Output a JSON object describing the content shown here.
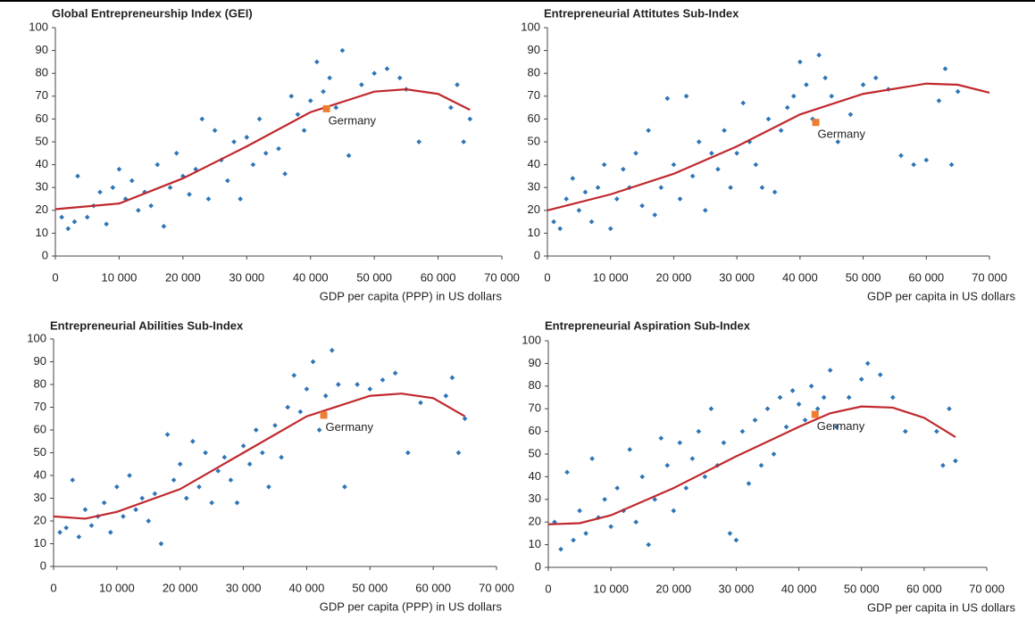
{
  "chart_data": [
    {
      "type": "scatter",
      "title": "Global Entrepreneurship Index (GEI)",
      "xlabel": "GDP per capita (PPP) in US dollars",
      "xlim": [
        0,
        70000
      ],
      "ylim": [
        0,
        100
      ],
      "xticks": [
        0,
        {
          "value": 10000,
          "label": "10 000"
        },
        {
          "value": 20000,
          "label": "20 000"
        },
        {
          "value": 30000,
          "label": "30 000"
        },
        {
          "value": 40000,
          "label": "40 000"
        },
        {
          "value": 50000,
          "label": "50 000"
        },
        {
          "value": 60000,
          "label": "60 000"
        },
        {
          "value": 70000,
          "label": "70 000"
        }
      ],
      "yticks": [
        0,
        10,
        20,
        30,
        40,
        50,
        60,
        70,
        80,
        90,
        100
      ],
      "series": [
        {
          "type": "scatter",
          "color": "#2e75b6",
          "x": [
            1000,
            2000,
            3000,
            3500,
            5000,
            6000,
            7000,
            8000,
            9000,
            10000,
            11000,
            12000,
            13000,
            14000,
            15000,
            16000,
            17000,
            18000,
            19000,
            20000,
            21000,
            22000,
            23000,
            24000,
            25000,
            26000,
            27000,
            28000,
            29000,
            30000,
            31000,
            32000,
            33000,
            35000,
            36000,
            37000,
            38000,
            39000,
            40000,
            41000,
            42000,
            43000,
            44000,
            45000,
            46000,
            48000,
            50000,
            52000,
            54000,
            55000,
            57000,
            62000,
            63000,
            64000,
            65000
          ],
          "values": [
            17,
            12,
            15,
            35,
            17,
            22,
            28,
            14,
            30,
            38,
            25,
            33,
            20,
            28,
            22,
            40,
            13,
            30,
            45,
            35,
            27,
            38,
            60,
            25,
            55,
            42,
            33,
            50,
            25,
            52,
            40,
            60,
            45,
            47,
            36,
            70,
            62,
            55,
            68,
            85,
            72,
            78,
            65,
            90,
            44,
            75,
            80,
            82,
            78,
            73,
            50,
            65,
            75,
            50,
            60
          ]
        },
        {
          "type": "line",
          "color": "#c0282d",
          "x": [
            0,
            10000,
            20000,
            30000,
            40000,
            50000,
            55000,
            60000,
            65000
          ],
          "values": [
            20.5,
            23,
            34,
            48,
            63,
            72,
            73,
            71,
            64
          ]
        },
        {
          "type": "scatter",
          "name": "Germany",
          "color": "#ed7d31",
          "x": [
            42500
          ],
          "values": [
            64.5
          ]
        }
      ]
    },
    {
      "type": "scatter",
      "title": "Entrepreneurial Attitutes Sub-Index",
      "xlabel": "GDP per capita in US dollars",
      "xlim": [
        0,
        70000
      ],
      "ylim": [
        0,
        100
      ],
      "xticks": [
        0,
        {
          "value": 10000,
          "label": "10 000"
        },
        {
          "value": 20000,
          "label": "20 000"
        },
        {
          "value": 30000,
          "label": "30 000"
        },
        {
          "value": 40000,
          "label": "40 000"
        },
        {
          "value": 50000,
          "label": "50 000"
        },
        {
          "value": 60000,
          "label": "60 000"
        },
        {
          "value": 70000,
          "label": "70 000"
        }
      ],
      "yticks": [
        0,
        10,
        20,
        30,
        40,
        50,
        60,
        70,
        80,
        90,
        100
      ],
      "series": [
        {
          "type": "scatter",
          "color": "#2e75b6",
          "x": [
            1000,
            2000,
            3000,
            4000,
            5000,
            6000,
            7000,
            8000,
            9000,
            10000,
            11000,
            12000,
            13000,
            14000,
            15000,
            16000,
            17000,
            18000,
            19000,
            20000,
            21000,
            22000,
            23000,
            24000,
            25000,
            26000,
            27000,
            28000,
            29000,
            30000,
            31000,
            32000,
            33000,
            34000,
            35000,
            36000,
            37000,
            38000,
            39000,
            40000,
            41000,
            42000,
            43000,
            44000,
            45000,
            46000,
            48000,
            50000,
            52000,
            54000,
            56000,
            58000,
            60000,
            62000,
            63000,
            64000,
            65000
          ],
          "values": [
            15,
            12,
            25,
            34,
            20,
            28,
            15,
            30,
            40,
            12,
            25,
            38,
            30,
            45,
            22,
            55,
            18,
            30,
            69,
            40,
            25,
            70,
            35,
            50,
            20,
            45,
            38,
            55,
            30,
            45,
            67,
            50,
            40,
            30,
            60,
            28,
            55,
            65,
            70,
            85,
            75,
            60,
            88,
            78,
            70,
            50,
            62,
            75,
            78,
            73,
            44,
            40,
            42,
            68,
            82,
            40,
            72
          ]
        },
        {
          "type": "line",
          "color": "#c0282d",
          "x": [
            0,
            10000,
            20000,
            30000,
            40000,
            50000,
            60000,
            65000,
            70000
          ],
          "values": [
            20,
            27,
            36,
            48,
            62,
            71,
            75.5,
            75,
            71.5
          ]
        },
        {
          "type": "scatter",
          "name": "Germany",
          "color": "#ed7d31",
          "x": [
            42500
          ],
          "values": [
            58.5
          ]
        }
      ]
    },
    {
      "type": "scatter",
      "title": "Entrepreneurial Abilities Sub-Index",
      "xlabel": "GDP per capita (PPP) in US dollars",
      "xlim": [
        0,
        70000
      ],
      "ylim": [
        0,
        100
      ],
      "xticks": [
        0,
        {
          "value": 10000,
          "label": "10 000"
        },
        {
          "value": 20000,
          "label": "20 000"
        },
        {
          "value": 30000,
          "label": "30 000"
        },
        {
          "value": 40000,
          "label": "40 000"
        },
        {
          "value": 50000,
          "label": "50 000"
        },
        {
          "value": 60000,
          "label": "60 000"
        },
        {
          "value": 70000,
          "label": "70 000"
        }
      ],
      "yticks": [
        0,
        10,
        20,
        30,
        40,
        50,
        60,
        70,
        80,
        90,
        100
      ],
      "series": [
        {
          "type": "scatter",
          "color": "#2e75b6",
          "x": [
            1000,
            2000,
            3000,
            4000,
            5000,
            6000,
            7000,
            8000,
            9000,
            10000,
            11000,
            12000,
            13000,
            14000,
            15000,
            16000,
            17000,
            18000,
            19000,
            20000,
            21000,
            22000,
            23000,
            24000,
            25000,
            26000,
            27000,
            28000,
            29000,
            30000,
            31000,
            32000,
            33000,
            34000,
            35000,
            36000,
            37000,
            38000,
            39000,
            40000,
            41000,
            42000,
            43000,
            44000,
            45000,
            46000,
            48000,
            50000,
            52000,
            54000,
            56000,
            58000,
            62000,
            63000,
            64000,
            65000
          ],
          "values": [
            15,
            17,
            38,
            13,
            25,
            18,
            22,
            28,
            15,
            35,
            22,
            40,
            25,
            30,
            20,
            32,
            10,
            58,
            38,
            45,
            30,
            55,
            35,
            50,
            28,
            42,
            48,
            38,
            28,
            53,
            45,
            60,
            50,
            35,
            62,
            48,
            70,
            84,
            68,
            78,
            90,
            60,
            75,
            95,
            80,
            35,
            80,
            78,
            82,
            85,
            50,
            72,
            75,
            83,
            50,
            65
          ]
        },
        {
          "type": "line",
          "color": "#c0282d",
          "x": [
            0,
            5000,
            10000,
            20000,
            30000,
            40000,
            50000,
            55000,
            60000,
            65000
          ],
          "values": [
            22,
            21,
            24,
            34,
            50,
            66,
            75,
            76,
            74,
            66
          ]
        },
        {
          "type": "scatter",
          "name": "Germany",
          "color": "#ed7d31",
          "x": [
            42700
          ],
          "values": [
            66.5
          ]
        }
      ]
    },
    {
      "type": "scatter",
      "title": "Entrepreneurial Aspiration Sub-Index",
      "xlabel": "GDP per capita in US dollars",
      "xlim": [
        0,
        70000
      ],
      "ylim": [
        0,
        100
      ],
      "xticks": [
        0,
        {
          "value": 10000,
          "label": "10 000"
        },
        {
          "value": 20000,
          "label": "20 000"
        },
        {
          "value": 30000,
          "label": "30 000"
        },
        {
          "value": 40000,
          "label": "40 000"
        },
        {
          "value": 50000,
          "label": "50 000"
        },
        {
          "value": 60000,
          "label": "60 000"
        },
        {
          "value": 70000,
          "label": "70 000"
        }
      ],
      "yticks": [
        0,
        10,
        20,
        30,
        40,
        50,
        60,
        70,
        80,
        90,
        100
      ],
      "series": [
        {
          "type": "scatter",
          "color": "#2e75b6",
          "x": [
            1000,
            2000,
            3000,
            4000,
            5000,
            6000,
            7000,
            8000,
            9000,
            10000,
            11000,
            12000,
            13000,
            14000,
            15000,
            16000,
            17000,
            18000,
            19000,
            20000,
            21000,
            22000,
            23000,
            24000,
            25000,
            26000,
            27000,
            28000,
            29000,
            30000,
            31000,
            32000,
            33000,
            34000,
            35000,
            36000,
            37000,
            38000,
            39000,
            40000,
            41000,
            42000,
            43000,
            44000,
            45000,
            46000,
            48000,
            50000,
            51000,
            53000,
            55000,
            57000,
            62000,
            63000,
            64000,
            65000
          ],
          "values": [
            20,
            8,
            42,
            12,
            25,
            15,
            48,
            22,
            30,
            18,
            35,
            25,
            52,
            20,
            40,
            10,
            30,
            57,
            45,
            25,
            55,
            35,
            48,
            60,
            40,
            70,
            45,
            55,
            15,
            12,
            60,
            37,
            65,
            45,
            70,
            50,
            75,
            62,
            78,
            72,
            65,
            80,
            70,
            75,
            87,
            62,
            75,
            83,
            90,
            85,
            75,
            60,
            60,
            45,
            70,
            47
          ]
        },
        {
          "type": "line",
          "color": "#c0282d",
          "x": [
            0,
            5000,
            10000,
            20000,
            30000,
            40000,
            45000,
            50000,
            55000,
            60000,
            65000
          ],
          "values": [
            19,
            19.5,
            23,
            35,
            49,
            62,
            68,
            71,
            70.5,
            66,
            57.5
          ]
        },
        {
          "type": "scatter",
          "name": "Germany",
          "color": "#ed7d31",
          "x": [
            42600
          ],
          "values": [
            67.5
          ]
        }
      ]
    }
  ]
}
